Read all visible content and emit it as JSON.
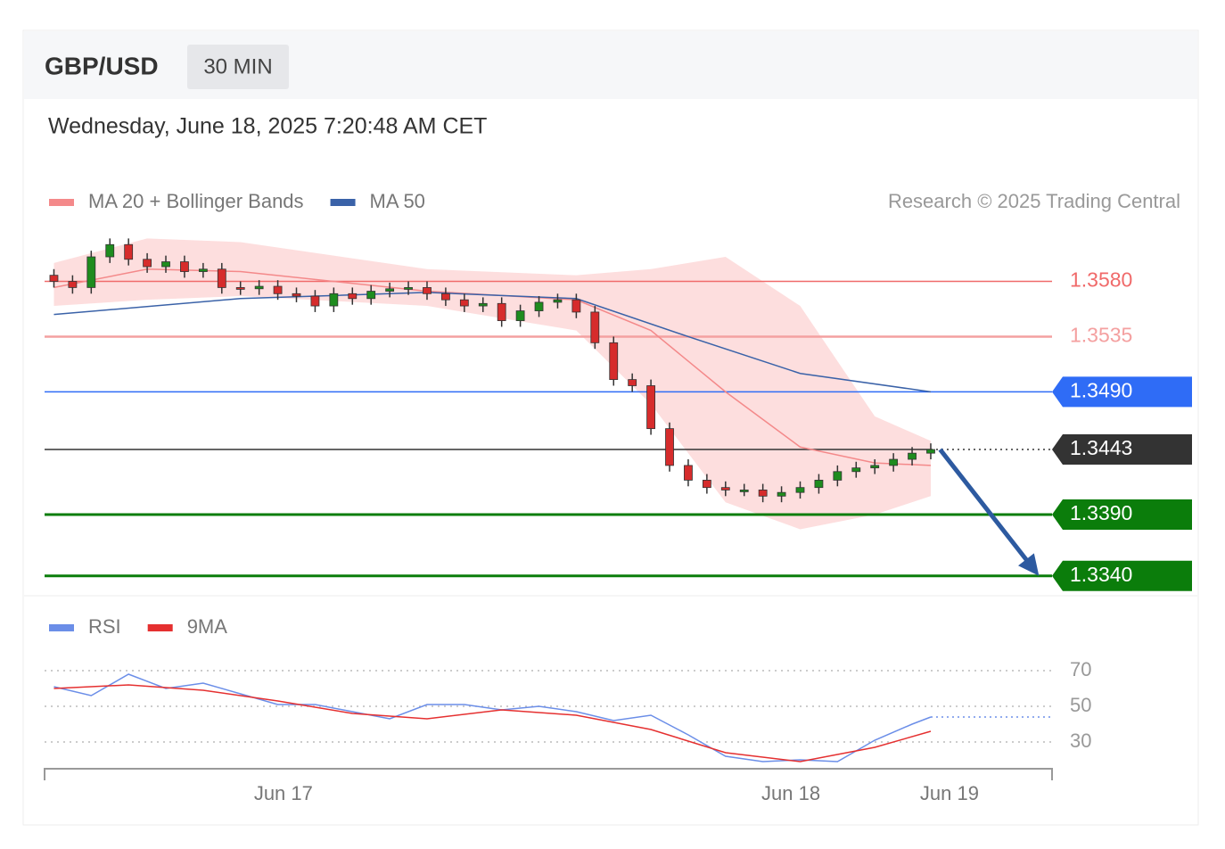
{
  "header": {
    "symbol": "GBP/USD",
    "interval": "30 MIN",
    "datetime": "Wednesday, June 18, 2025 7:20:48 AM CET",
    "credit": "Research © 2025 Trading Central"
  },
  "chart_data": [
    {
      "type": "candlestick",
      "xlim": [
        -0.5,
        53.5
      ],
      "ylim": [
        1.3326,
        1.3624
      ],
      "x": [
        0,
        1,
        2,
        3,
        4,
        5,
        6,
        7,
        8,
        9,
        10,
        11,
        12,
        13,
        14,
        15,
        16,
        17,
        18,
        19,
        20,
        21,
        22,
        23,
        24,
        25,
        26,
        27,
        28,
        29,
        30,
        31,
        32,
        33,
        34,
        35,
        36,
        37,
        38,
        39,
        40,
        41,
        42,
        43,
        44,
        45,
        46,
        47
      ],
      "open": [
        1.3585,
        1.358,
        1.3575,
        1.36,
        1.361,
        1.3598,
        1.3592,
        1.3596,
        1.3588,
        1.359,
        1.3575,
        1.3574,
        1.3576,
        1.357,
        1.3568,
        1.356,
        1.357,
        1.3566,
        1.3572,
        1.3574,
        1.3575,
        1.357,
        1.3565,
        1.356,
        1.3562,
        1.3548,
        1.3556,
        1.3563,
        1.3565,
        1.3555,
        1.353,
        1.35,
        1.3495,
        1.346,
        1.343,
        1.3418,
        1.3412,
        1.341,
        1.341,
        1.3405,
        1.3408,
        1.3412,
        1.3418,
        1.3425,
        1.3428,
        1.343,
        1.3435,
        1.344
      ],
      "high": [
        1.359,
        1.3585,
        1.3605,
        1.3615,
        1.3615,
        1.3603,
        1.3601,
        1.3601,
        1.3595,
        1.3595,
        1.358,
        1.3581,
        1.3581,
        1.3575,
        1.3573,
        1.3575,
        1.3575,
        1.3577,
        1.3579,
        1.358,
        1.358,
        1.3575,
        1.357,
        1.3567,
        1.3567,
        1.3561,
        1.3568,
        1.357,
        1.357,
        1.356,
        1.3535,
        1.3505,
        1.35,
        1.3465,
        1.3435,
        1.3423,
        1.3417,
        1.3415,
        1.3415,
        1.3413,
        1.3417,
        1.3423,
        1.343,
        1.3433,
        1.3435,
        1.344,
        1.3445,
        1.3448
      ],
      "low": [
        1.3575,
        1.357,
        1.357,
        1.3595,
        1.3593,
        1.3587,
        1.3587,
        1.3583,
        1.3583,
        1.357,
        1.3569,
        1.3569,
        1.3565,
        1.3563,
        1.3555,
        1.3555,
        1.3561,
        1.3561,
        1.3567,
        1.3569,
        1.3565,
        1.356,
        1.3555,
        1.3555,
        1.3543,
        1.3543,
        1.3551,
        1.3558,
        1.355,
        1.3525,
        1.3495,
        1.349,
        1.3455,
        1.3425,
        1.3413,
        1.3407,
        1.3405,
        1.3405,
        1.34,
        1.34,
        1.3403,
        1.3407,
        1.3413,
        1.342,
        1.3423,
        1.3425,
        1.343,
        1.3435
      ],
      "close": [
        1.358,
        1.3575,
        1.36,
        1.361,
        1.3598,
        1.3592,
        1.3596,
        1.3588,
        1.359,
        1.3575,
        1.3574,
        1.3576,
        1.357,
        1.3568,
        1.356,
        1.357,
        1.3566,
        1.3572,
        1.3574,
        1.3575,
        1.357,
        1.3565,
        1.356,
        1.3562,
        1.3548,
        1.3556,
        1.3563,
        1.3565,
        1.3555,
        1.353,
        1.35,
        1.3495,
        1.346,
        1.343,
        1.3418,
        1.3412,
        1.341,
        1.341,
        1.3405,
        1.3408,
        1.3412,
        1.3418,
        1.3425,
        1.3428,
        1.343,
        1.3435,
        1.344,
        1.3443
      ],
      "up_color": "#1e8c1e",
      "down_color": "#d62c2c",
      "series": [
        {
          "name": "MA 20 + Bollinger Bands",
          "color": "#f4898a",
          "x": [
            0,
            5,
            10,
            20,
            28,
            32,
            36,
            40,
            44,
            47
          ],
          "values": [
            1.3575,
            1.359,
            1.3588,
            1.3572,
            1.3565,
            1.354,
            1.349,
            1.3445,
            1.3432,
            1.343
          ],
          "upper": [
            1.3595,
            1.3615,
            1.3612,
            1.359,
            1.3585,
            1.359,
            1.36,
            1.356,
            1.347,
            1.345
          ],
          "lower": [
            1.356,
            1.3565,
            1.3568,
            1.356,
            1.354,
            1.348,
            1.34,
            1.3378,
            1.339,
            1.3405
          ],
          "band_color": "#fdd8d8"
        },
        {
          "name": "MA 50",
          "color": "#3a62a8",
          "x": [
            0,
            10,
            20,
            28,
            34,
            40,
            47
          ],
          "values": [
            1.3553,
            1.3566,
            1.3571,
            1.3566,
            1.3535,
            1.3505,
            1.349
          ]
        }
      ],
      "levels": [
        {
          "value": 1.358,
          "label": "1.3580",
          "color": "#f06a6a",
          "tag": false,
          "width": 1.5
        },
        {
          "value": 1.3535,
          "label": "1.3535",
          "color": "#f4a0a0",
          "tag": false,
          "width": 2.5
        },
        {
          "value": 1.349,
          "label": "1.3490",
          "color": "#2f6cf6",
          "tag": true,
          "width": 1.5
        },
        {
          "value": 1.3443,
          "label": "1.3443",
          "color": "#333333",
          "tag": true,
          "width": 1.5,
          "dotted": true
        },
        {
          "value": 1.339,
          "label": "1.3390",
          "color": "#0b7d0b",
          "tag": true,
          "width": 3
        },
        {
          "value": 1.334,
          "label": "1.3340",
          "color": "#0b7d0b",
          "tag": true,
          "width": 3
        }
      ],
      "arrow": {
        "x": [
          47.5,
          52.8
        ],
        "y": [
          1.3443,
          1.334
        ],
        "color": "#2d5aa0"
      }
    },
    {
      "type": "line",
      "xlim": [
        -0.5,
        53.5
      ],
      "ylim": [
        15,
        81
      ],
      "grid": true,
      "yticks": [
        70,
        50,
        30
      ],
      "xticks": [
        {
          "value": 12.3,
          "label": "Jun 17"
        },
        {
          "value": 39.5,
          "label": "Jun 18"
        },
        {
          "value": 48,
          "label": "Jun 19"
        }
      ],
      "series": [
        {
          "name": "RSI",
          "color": "#6b8ee8",
          "x": [
            0,
            2,
            4,
            6,
            8,
            10,
            12,
            14,
            16,
            18,
            20,
            22,
            24,
            26,
            28,
            30,
            32,
            34,
            36,
            38,
            40,
            42,
            44,
            46,
            47
          ],
          "values": [
            61,
            56,
            68,
            60,
            63,
            57,
            51,
            51,
            47,
            43,
            51,
            51,
            48,
            50,
            47,
            42,
            45,
            34,
            22,
            19,
            20,
            19,
            31,
            40,
            44
          ]
        },
        {
          "name": "9MA",
          "color": "#e53030",
          "x": [
            0,
            4,
            8,
            12,
            16,
            20,
            24,
            28,
            32,
            36,
            40,
            44,
            47
          ],
          "values": [
            60,
            62,
            59,
            53,
            46,
            43,
            48,
            45,
            37,
            24,
            19,
            27,
            36
          ]
        }
      ]
    }
  ]
}
